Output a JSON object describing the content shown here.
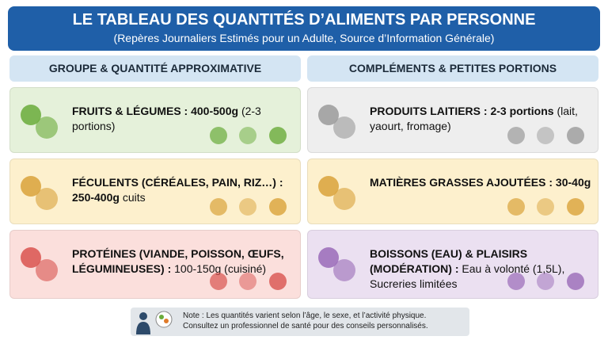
{
  "header": {
    "title": "LE TABLEAU DES QUANTITÉS D’ALIMENTS PAR PERSONNE",
    "subtitle": "(Repères Journaliers Estimés pour un Adulte, Source d’Information Générale)"
  },
  "columns": [
    "GROUPE & QUANTITÉ APPROXIMATIVE",
    "COMPLÉMENTS & PETITES PORTIONS"
  ],
  "cards": [
    {
      "bold": "FRUITS & LÉGUMES : 400-500g",
      "text": "(2-3 portions)"
    },
    {
      "bold": "FÉCULENTS (CÉRÉALES, PAIN, RIZ…) : 250-400g",
      "text": "cuits"
    },
    {
      "bold": "PROTÉINES (VIANDE, POISSON, ŒUFS, LÉGUMINEUSES) :",
      "text": "100-150g (cuisiné)"
    },
    {
      "bold": "PRODUITS LAITIERS : 2-3 portions",
      "text": "(lait, yaourt, fromage)"
    },
    {
      "bold": "MATIÈRES GRASSES AJOUTÉES : 30-40g",
      "text": ""
    },
    {
      "bold": "BOISSONS (EAU) & PLAISIRS (MODÉRATION) :",
      "text": "Eau à volonté (1,5L), Sucreries limitées"
    }
  ],
  "note": [
    "Note : Les quantités varient selon l’âge, le sexe, et l’activité physique.",
    "Consultez un professionnel de santé pour des conseils personnalisés."
  ]
}
